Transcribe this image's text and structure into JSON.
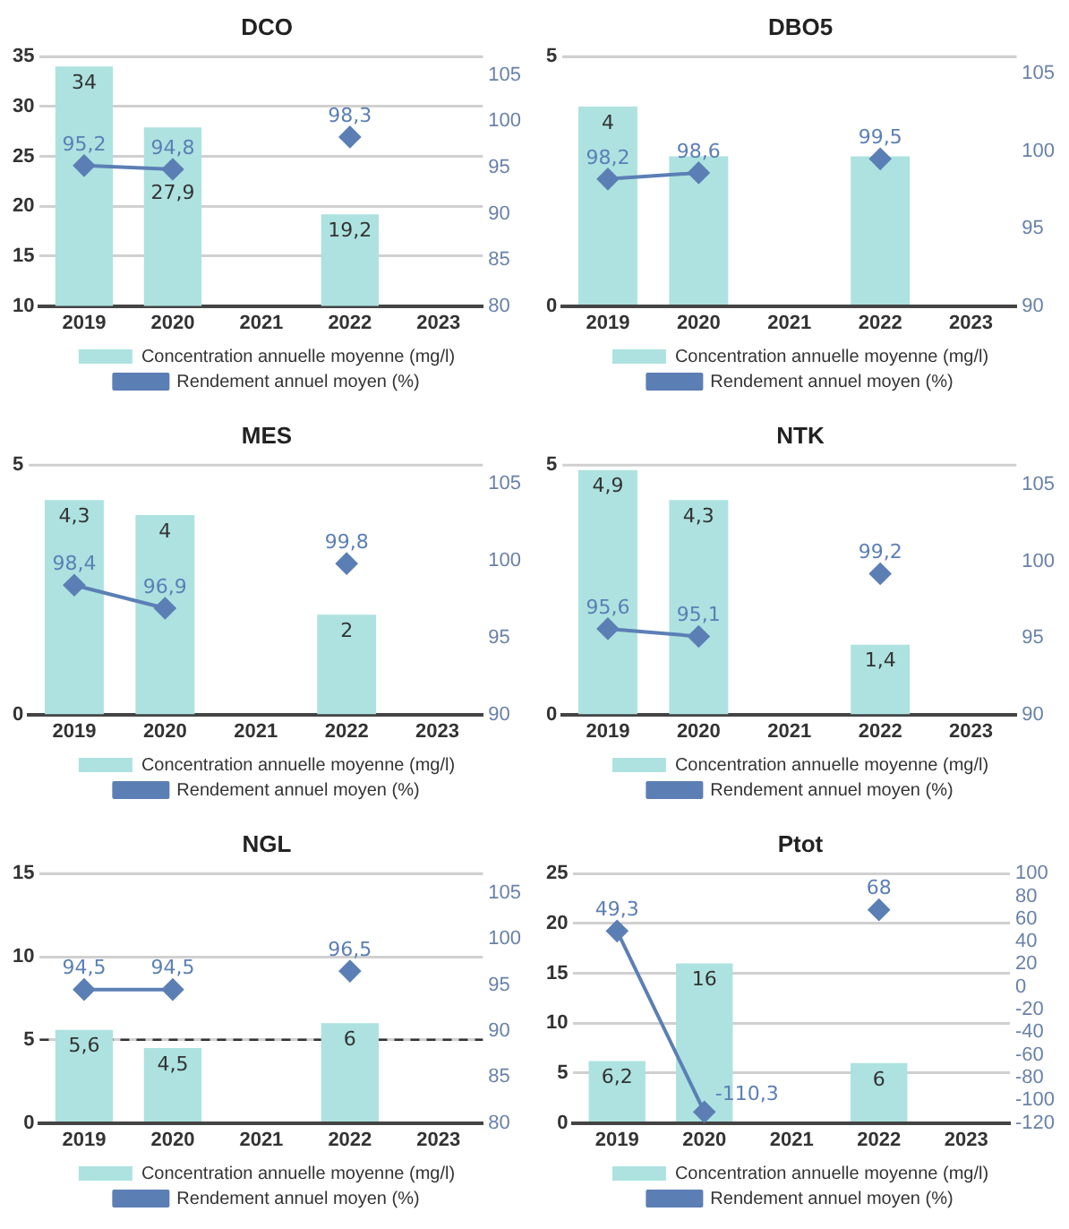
{
  "chart_data": [
    {
      "type": "bar",
      "title": "DCO",
      "categories": [
        "2019",
        "2020",
        "2021",
        "2022",
        "2023"
      ],
      "ylim": [
        10,
        35
      ],
      "yticks": [
        10,
        15,
        20,
        25,
        30,
        35
      ],
      "y2lim": [
        80,
        107
      ],
      "y2ticks": [
        80,
        85,
        90,
        95,
        100,
        105
      ],
      "grid": "y",
      "legend": "bottom",
      "series": [
        {
          "name": "Concentration annuelle moyenne (mg/l)",
          "type": "bar",
          "color": "#ade2e0",
          "values": [
            34,
            27.9,
            null,
            19.2,
            null
          ],
          "value_labels": [
            "34",
            "27,9",
            null,
            "19,2",
            null
          ]
        },
        {
          "name": "Rendement annuel moyen (%)",
          "type": "line",
          "axis": "y2",
          "marker": "diamond",
          "color": "#5b7fb5",
          "values": [
            95.2,
            94.8,
            null,
            98.3,
            null
          ],
          "value_labels": [
            "95,2",
            "94,8",
            null,
            "98,3",
            null
          ]
        }
      ]
    },
    {
      "type": "bar",
      "title": "DBO5",
      "categories": [
        "2019",
        "2020",
        "2021",
        "2022",
        "2023"
      ],
      "ylim": [
        0,
        5
      ],
      "yticks": [
        0,
        5
      ],
      "y2lim": [
        90,
        106.1
      ],
      "y2ticks": [
        90,
        95,
        100,
        105
      ],
      "grid": "y",
      "legend": "bottom",
      "series": [
        {
          "name": "Concentration annuelle moyenne (mg/l)",
          "type": "bar",
          "color": "#ade2e0",
          "values": [
            4,
            3,
            null,
            3,
            null
          ],
          "value_labels": [
            "4",
            null,
            null,
            null,
            null
          ]
        },
        {
          "name": "Rendement annuel moyen (%)",
          "type": "line",
          "axis": "y2",
          "marker": "diamond",
          "color": "#5b7fb5",
          "values": [
            98.2,
            98.6,
            null,
            99.5,
            null
          ],
          "value_labels": [
            "98,2",
            "98,6",
            null,
            "99,5",
            null
          ]
        }
      ]
    },
    {
      "type": "bar",
      "title": "MES",
      "categories": [
        "2019",
        "2020",
        "2021",
        "2022",
        "2023"
      ],
      "ylim": [
        0,
        5
      ],
      "yticks": [
        0,
        5
      ],
      "y2lim": [
        90,
        106.2
      ],
      "y2ticks": [
        90,
        95,
        100,
        105
      ],
      "legend": "bottom",
      "series": [
        {
          "name": "Concentration annuelle moyenne (mg/l)",
          "type": "bar",
          "color": "#ade2e0",
          "values": [
            4.3,
            4,
            null,
            2,
            null
          ],
          "value_labels": [
            "4,3",
            "4",
            null,
            "2",
            null
          ]
        },
        {
          "name": "Rendement annuel moyen (%)",
          "type": "line",
          "axis": "y2",
          "marker": "diamond",
          "color": "#5b7fb5",
          "values": [
            98.4,
            96.9,
            null,
            99.8,
            null
          ],
          "value_labels": [
            "98,4",
            "96,9",
            null,
            "99,8",
            null
          ]
        }
      ]
    },
    {
      "type": "bar",
      "title": "NTK",
      "categories": [
        "2019",
        "2020",
        "2021",
        "2022",
        "2023"
      ],
      "ylim": [
        0,
        5
      ],
      "yticks": [
        0,
        5
      ],
      "y2lim": [
        90,
        106.3
      ],
      "y2ticks": [
        90,
        95,
        100,
        105
      ],
      "legend": "bottom",
      "series": [
        {
          "name": "Concentration annuelle moyenne (mg/l)",
          "type": "bar",
          "color": "#ade2e0",
          "values": [
            4.9,
            4.3,
            null,
            1.4,
            null
          ],
          "value_labels": [
            "4,9",
            "4,3",
            null,
            "1,4",
            null
          ]
        },
        {
          "name": "Rendement annuel moyen (%)",
          "type": "line",
          "axis": "y2",
          "marker": "diamond",
          "color": "#5b7fb5",
          "values": [
            95.6,
            95.1,
            null,
            99.2,
            null
          ],
          "value_labels": [
            "95,6",
            "95,1",
            null,
            "99,2",
            null
          ]
        }
      ]
    },
    {
      "type": "bar",
      "title": "NGL",
      "categories": [
        "2019",
        "2020",
        "2021",
        "2022",
        "2023"
      ],
      "ylim": [
        0,
        15
      ],
      "yticks": [
        0,
        5,
        10,
        15
      ],
      "y2lim": [
        80,
        107.1
      ],
      "y2ticks": [
        80,
        85,
        90,
        95,
        100,
        105
      ],
      "grid": "y",
      "legend": "bottom",
      "ref_lines": [
        {
          "axis": "y",
          "value": 5,
          "color": "#333333",
          "line_style": "dashed"
        }
      ],
      "series": [
        {
          "name": "Concentration annuelle moyenne (mg/l)",
          "type": "bar",
          "color": "#ade2e0",
          "values": [
            5.6,
            4.5,
            null,
            6,
            null
          ],
          "value_labels": [
            "5,6",
            "4,5",
            null,
            "6",
            null
          ]
        },
        {
          "name": "Rendement annuel moyen (%)",
          "type": "line",
          "axis": "y2",
          "marker": "diamond",
          "color": "#5b7fb5",
          "values": [
            94.5,
            94.5,
            null,
            96.5,
            null
          ],
          "value_labels": [
            "94,5",
            "94,5",
            null,
            "96,5",
            null
          ]
        }
      ]
    },
    {
      "type": "bar",
      "title": "Ptot",
      "categories": [
        "2019",
        "2020",
        "2021",
        "2022",
        "2023"
      ],
      "ylim": [
        0,
        25
      ],
      "yticks": [
        0,
        5,
        10,
        15,
        20,
        25
      ],
      "y2lim": [
        -120,
        100
      ],
      "y2ticks": [
        -120,
        -100,
        -80,
        -60,
        -40,
        -20,
        0,
        20,
        40,
        60,
        80,
        100
      ],
      "grid": "y",
      "legend": "bottom",
      "series": [
        {
          "name": "Concentration annuelle moyenne (mg/l)",
          "type": "bar",
          "color": "#ade2e0",
          "values": [
            6.2,
            16,
            null,
            6,
            null
          ],
          "value_labels": [
            "6,2",
            "16",
            null,
            "6",
            null
          ]
        },
        {
          "name": "Rendement annuel moyen (%)",
          "type": "line",
          "axis": "y2",
          "marker": "diamond",
          "color": "#5b7fb5",
          "values": [
            49.3,
            -110.3,
            null,
            68,
            null
          ],
          "value_labels": [
            "49,3",
            "-110,3",
            null,
            "68",
            null
          ]
        }
      ]
    }
  ]
}
